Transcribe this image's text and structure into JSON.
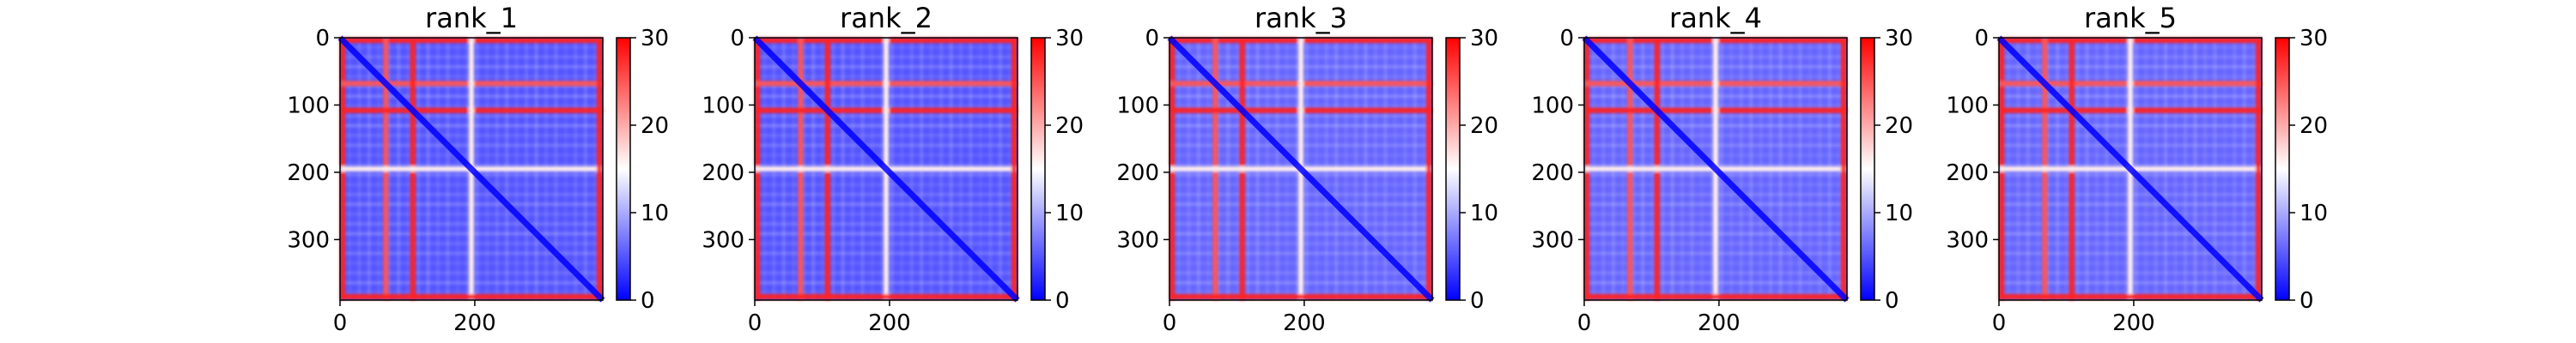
{
  "chart_data": [
    {
      "type": "heatmap",
      "title": "rank_1",
      "x_ticks": [
        0,
        200
      ],
      "y_ticks": [
        0,
        100,
        200,
        300
      ],
      "xlim": [
        0,
        390
      ],
      "ylim": [
        390,
        0
      ],
      "colorbar": {
        "min": 0,
        "max": 30,
        "ticks": [
          0,
          10,
          20,
          30
        ],
        "colormap": "bwr",
        "colors": [
          "#0000ff",
          "#ffffff",
          "#ff0000"
        ]
      },
      "bands": [
        {
          "position": 0,
          "value": 28
        },
        {
          "position": 68,
          "value": 25
        },
        {
          "position": 108,
          "value": 28
        },
        {
          "position": 195,
          "value": 16
        },
        {
          "position": 385,
          "value": 28
        }
      ],
      "background_value": 5,
      "diagonal_value": 0
    },
    {
      "type": "heatmap",
      "title": "rank_2",
      "x_ticks": [
        0,
        200
      ],
      "y_ticks": [
        0,
        100,
        200,
        300
      ],
      "xlim": [
        0,
        390
      ],
      "ylim": [
        390,
        0
      ],
      "colorbar": {
        "min": 0,
        "max": 30,
        "ticks": [
          0,
          10,
          20,
          30
        ],
        "colormap": "bwr",
        "colors": [
          "#0000ff",
          "#ffffff",
          "#ff0000"
        ]
      },
      "bands": [
        {
          "position": 0,
          "value": 28
        },
        {
          "position": 68,
          "value": 25
        },
        {
          "position": 108,
          "value": 28
        },
        {
          "position": 195,
          "value": 16
        },
        {
          "position": 385,
          "value": 28
        }
      ],
      "background_value": 5,
      "diagonal_value": 0
    },
    {
      "type": "heatmap",
      "title": "rank_3",
      "x_ticks": [
        0,
        200
      ],
      "y_ticks": [
        0,
        100,
        200,
        300
      ],
      "xlim": [
        0,
        390
      ],
      "ylim": [
        390,
        0
      ],
      "colorbar": {
        "min": 0,
        "max": 30,
        "ticks": [
          0,
          10,
          20,
          30
        ],
        "colormap": "bwr",
        "colors": [
          "#0000ff",
          "#ffffff",
          "#ff0000"
        ]
      },
      "bands": [
        {
          "position": 0,
          "value": 28
        },
        {
          "position": 68,
          "value": 25
        },
        {
          "position": 108,
          "value": 28
        },
        {
          "position": 195,
          "value": 16
        },
        {
          "position": 385,
          "value": 28
        }
      ],
      "background_value": 6,
      "diagonal_value": 0
    },
    {
      "type": "heatmap",
      "title": "rank_4",
      "x_ticks": [
        0,
        200
      ],
      "y_ticks": [
        0,
        100,
        200,
        300
      ],
      "xlim": [
        0,
        390
      ],
      "ylim": [
        390,
        0
      ],
      "colorbar": {
        "min": 0,
        "max": 30,
        "ticks": [
          0,
          10,
          20,
          30
        ],
        "colormap": "bwr",
        "colors": [
          "#0000ff",
          "#ffffff",
          "#ff0000"
        ]
      },
      "bands": [
        {
          "position": 0,
          "value": 28
        },
        {
          "position": 68,
          "value": 25
        },
        {
          "position": 108,
          "value": 28
        },
        {
          "position": 195,
          "value": 16
        },
        {
          "position": 385,
          "value": 28
        }
      ],
      "background_value": 6,
      "diagonal_value": 0
    },
    {
      "type": "heatmap",
      "title": "rank_5",
      "x_ticks": [
        0,
        200
      ],
      "y_ticks": [
        0,
        100,
        200,
        300
      ],
      "xlim": [
        0,
        390
      ],
      "ylim": [
        390,
        0
      ],
      "colorbar": {
        "min": 0,
        "max": 30,
        "ticks": [
          0,
          10,
          20,
          30
        ],
        "colormap": "bwr",
        "colors": [
          "#0000ff",
          "#ffffff",
          "#ff0000"
        ]
      },
      "bands": [
        {
          "position": 0,
          "value": 28
        },
        {
          "position": 68,
          "value": 25
        },
        {
          "position": 108,
          "value": 28
        },
        {
          "position": 195,
          "value": 16
        },
        {
          "position": 385,
          "value": 28
        }
      ],
      "background_value": 6,
      "diagonal_value": 0
    }
  ]
}
